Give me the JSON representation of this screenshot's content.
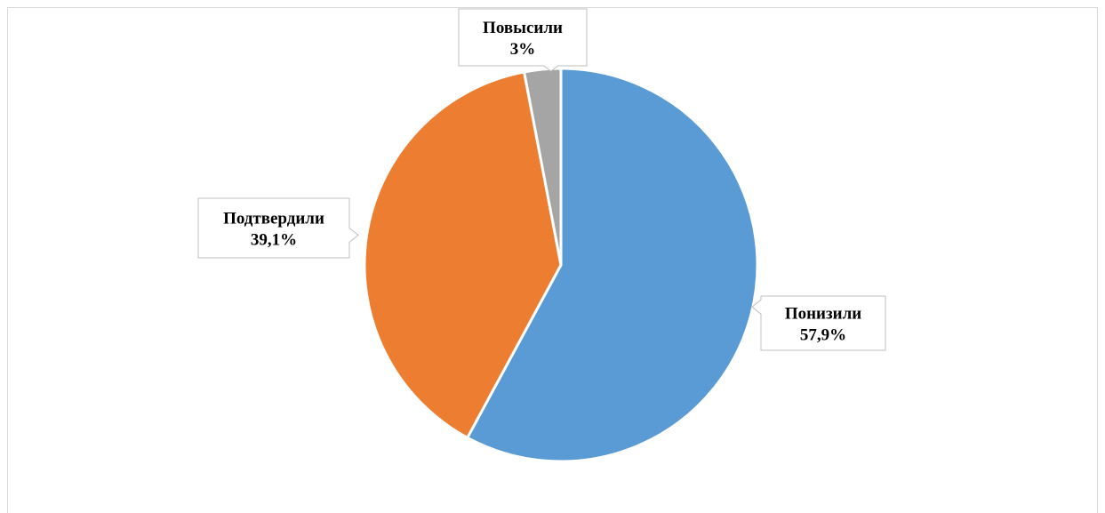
{
  "chart_data": {
    "type": "pie",
    "title": "",
    "categories": [
      "Понизили",
      "Подтвердили",
      "Повысили"
    ],
    "values": [
      57.9,
      39.1,
      3.0
    ],
    "data_labels": [
      "57,9%",
      "39,1%",
      "3%"
    ],
    "colors": [
      "#5B9BD5",
      "#ED7D31",
      "#A5A5A5"
    ],
    "legend": "none",
    "label_style": "callout"
  }
}
